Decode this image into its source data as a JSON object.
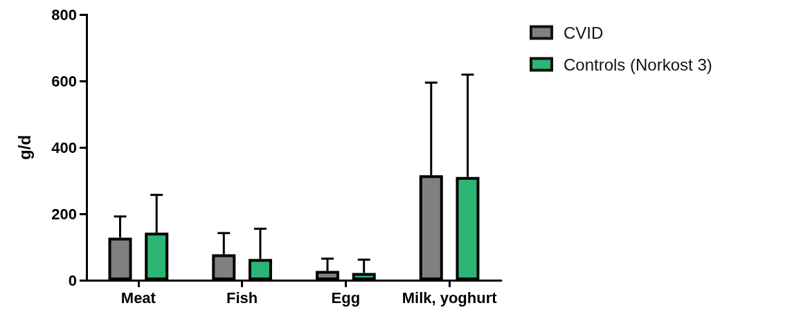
{
  "chart_data": {
    "type": "bar",
    "ylabel": "g/d",
    "categories": [
      "Meat",
      "Fish",
      "Egg",
      "Milk, yoghurt"
    ],
    "series": [
      {
        "name": "CVID",
        "color": "#808080",
        "values": [
          128,
          78,
          28,
          316
        ],
        "errors": [
          [
            128,
            192
          ],
          [
            78,
            142
          ],
          [
            28,
            65
          ],
          [
            316,
            595
          ]
        ]
      },
      {
        "name": "Controls (Norkost 3)",
        "color": "#2bb673",
        "values": [
          143,
          64,
          22,
          311
        ],
        "errors": [
          [
            143,
            257
          ],
          [
            64,
            155
          ],
          [
            22,
            62
          ],
          [
            311,
            619
          ]
        ]
      }
    ],
    "ylim": [
      0,
      800
    ],
    "yticks": [
      0,
      200,
      400,
      600,
      800
    ],
    "grid": false,
    "legend": "top right"
  }
}
